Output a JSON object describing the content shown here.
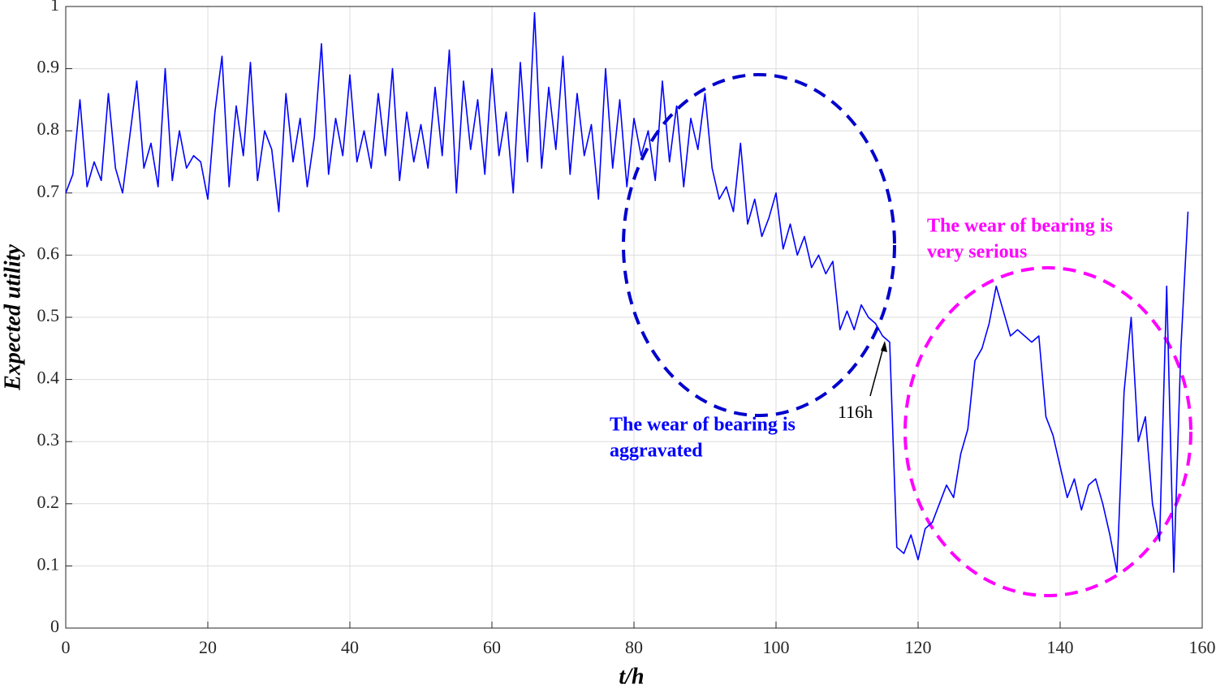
{
  "chart_data": {
    "type": "line",
    "xlabel": "t/h",
    "ylabel": "Expected utility",
    "x": [
      0,
      1,
      2,
      3,
      4,
      5,
      6,
      7,
      8,
      9,
      10,
      11,
      12,
      13,
      14,
      15,
      16,
      17,
      18,
      19,
      20,
      21,
      22,
      23,
      24,
      25,
      26,
      27,
      28,
      29,
      30,
      31,
      32,
      33,
      34,
      35,
      36,
      37,
      38,
      39,
      40,
      41,
      42,
      43,
      44,
      45,
      46,
      47,
      48,
      49,
      50,
      51,
      52,
      53,
      54,
      55,
      56,
      57,
      58,
      59,
      60,
      61,
      62,
      63,
      64,
      65,
      66,
      67,
      68,
      69,
      70,
      71,
      72,
      73,
      74,
      75,
      76,
      77,
      78,
      79,
      80,
      81,
      82,
      83,
      84,
      85,
      86,
      87,
      88,
      89,
      90,
      91,
      92,
      93,
      94,
      95,
      96,
      97,
      98,
      99,
      100,
      101,
      102,
      103,
      104,
      105,
      106,
      107,
      108,
      109,
      110,
      111,
      112,
      113,
      114,
      115,
      116,
      117,
      118,
      119,
      120,
      121,
      122,
      123,
      124,
      125,
      126,
      127,
      128,
      129,
      130,
      131,
      132,
      133,
      134,
      135,
      136,
      137,
      138,
      139,
      140,
      141,
      142,
      143,
      144,
      145,
      146,
      147,
      148,
      149,
      150,
      151,
      152,
      153,
      154,
      155,
      156,
      157,
      158
    ],
    "series": [
      {
        "color": "#0000ff",
        "values": [
          0.7,
          0.73,
          0.85,
          0.71,
          0.75,
          0.72,
          0.86,
          0.74,
          0.7,
          0.79,
          0.88,
          0.74,
          0.78,
          0.71,
          0.9,
          0.72,
          0.8,
          0.74,
          0.76,
          0.75,
          0.69,
          0.83,
          0.92,
          0.71,
          0.84,
          0.76,
          0.91,
          0.72,
          0.8,
          0.77,
          0.67,
          0.86,
          0.75,
          0.82,
          0.71,
          0.79,
          0.94,
          0.73,
          0.82,
          0.76,
          0.89,
          0.75,
          0.8,
          0.74,
          0.86,
          0.76,
          0.9,
          0.72,
          0.83,
          0.75,
          0.81,
          0.74,
          0.87,
          0.76,
          0.93,
          0.7,
          0.88,
          0.77,
          0.85,
          0.73,
          0.9,
          0.76,
          0.83,
          0.7,
          0.91,
          0.75,
          0.99,
          0.74,
          0.87,
          0.77,
          0.92,
          0.73,
          0.86,
          0.76,
          0.81,
          0.69,
          0.9,
          0.74,
          0.85,
          0.71,
          0.82,
          0.76,
          0.8,
          0.72,
          0.88,
          0.75,
          0.84,
          0.71,
          0.82,
          0.77,
          0.86,
          0.74,
          0.69,
          0.71,
          0.67,
          0.78,
          0.65,
          0.69,
          0.63,
          0.66,
          0.7,
          0.61,
          0.65,
          0.6,
          0.63,
          0.58,
          0.6,
          0.57,
          0.59,
          0.48,
          0.51,
          0.48,
          0.52,
          0.5,
          0.49,
          0.47,
          0.46,
          0.13,
          0.12,
          0.15,
          0.11,
          0.16,
          0.17,
          0.2,
          0.23,
          0.21,
          0.28,
          0.32,
          0.43,
          0.45,
          0.49,
          0.55,
          0.51,
          0.47,
          0.48,
          0.47,
          0.46,
          0.47,
          0.34,
          0.31,
          0.26,
          0.21,
          0.24,
          0.19,
          0.23,
          0.24,
          0.2,
          0.15,
          0.09,
          0.38,
          0.5,
          0.3,
          0.34,
          0.2,
          0.14,
          0.55,
          0.09,
          0.45,
          0.67
        ]
      }
    ],
    "xlim": [
      0,
      160
    ],
    "xticks": [
      0,
      20,
      40,
      60,
      80,
      100,
      120,
      140,
      160
    ],
    "ylim": [
      0,
      1
    ],
    "yticks": [
      0,
      0.1,
      0.2,
      0.3,
      0.4,
      0.5,
      0.6,
      0.7,
      0.8,
      0.9,
      1
    ],
    "grid": true,
    "annotations": [
      {
        "lines": [
          "The wear of bearing is",
          "aggravated"
        ],
        "color": "#0000ff"
      },
      {
        "lines": [
          "The wear of bearing is",
          "very serious"
        ],
        "color": "#ff00ff"
      },
      {
        "lines": [
          "116h"
        ],
        "color": "#000000"
      }
    ]
  }
}
